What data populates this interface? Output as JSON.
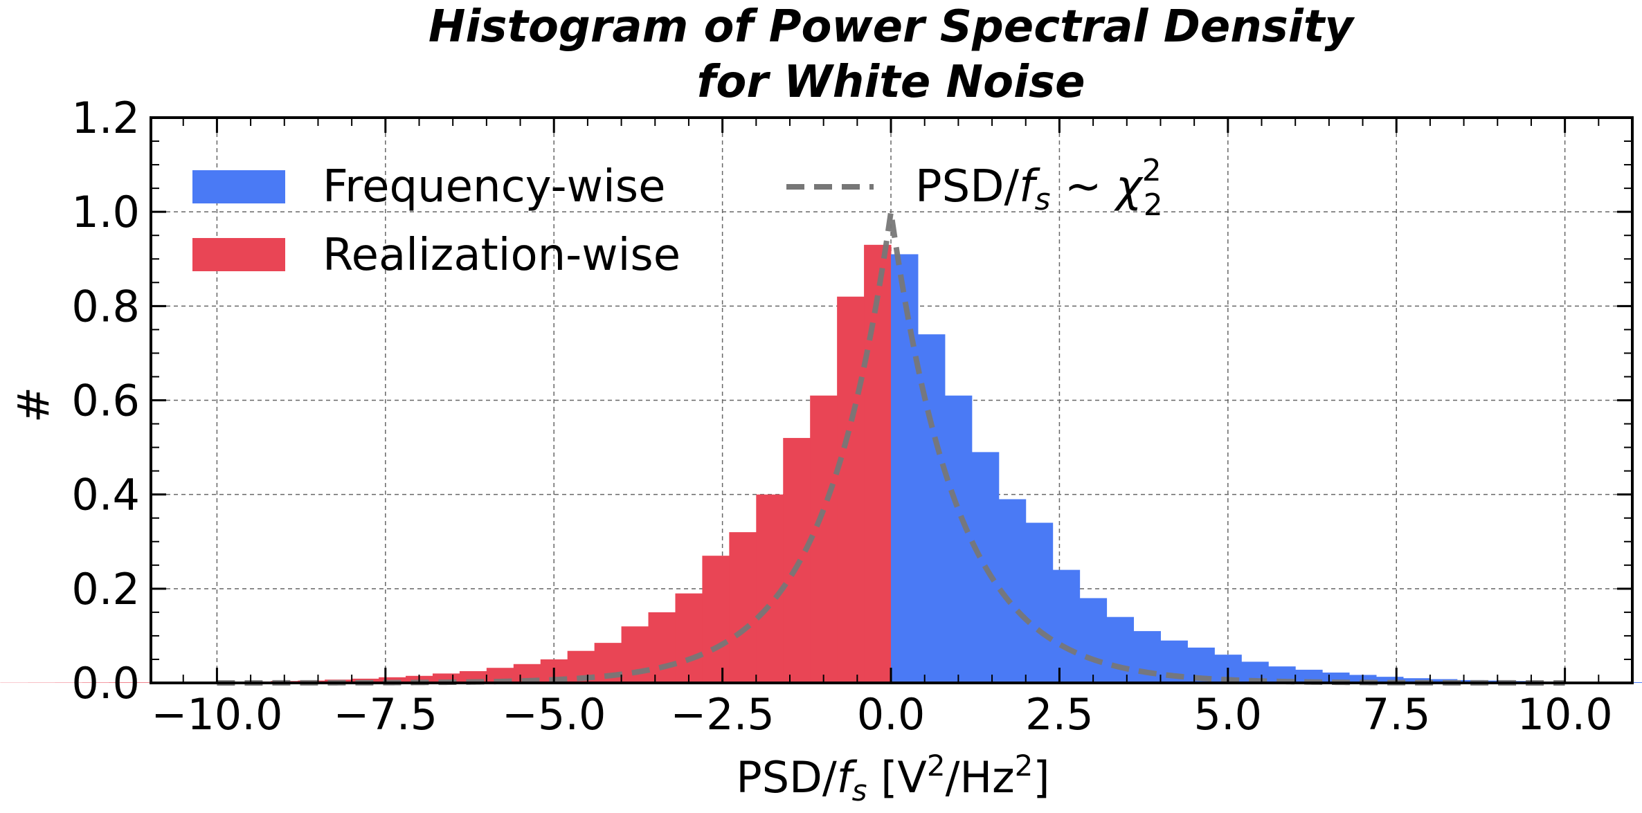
{
  "chart_data": {
    "type": "bar",
    "title_lines": [
      "Histogram of Power Spectral Density",
      "for White Noise"
    ],
    "xlabel": {
      "base": "PSD/",
      "var": "f",
      "sub": "s",
      "unit_open": " [V",
      "sup1": "2",
      "unit_mid": "/Hz",
      "sup2": "2",
      "unit_close": "]"
    },
    "ylabel": "#",
    "xlim": [
      -10.98,
      11.0
    ],
    "ylim": [
      0.0,
      1.2
    ],
    "xticks": [
      -10.0,
      -7.5,
      -5.0,
      -2.5,
      0.0,
      2.5,
      5.0,
      7.5,
      10.0
    ],
    "xtick_labels": [
      "−10.0",
      "−7.5",
      "−5.0",
      "−2.5",
      "0.0",
      "2.5",
      "5.0",
      "7.5",
      "10.0"
    ],
    "yticks": [
      0.0,
      0.2,
      0.4,
      0.6,
      0.8,
      1.0,
      1.2
    ],
    "ytick_labels": [
      "0.0",
      "0.2",
      "0.4",
      "0.6",
      "0.8",
      "1.0",
      "1.2"
    ],
    "grid": true,
    "legend": {
      "placement": "top-left",
      "entries": [
        {
          "label": "Frequency-wise",
          "kind": "patch",
          "color": "#4a7af5"
        },
        {
          "label": "Realization-wise",
          "kind": "patch",
          "color": "#e94555"
        },
        {
          "label_base": "PSD/",
          "label_var": "f",
          "label_sub": "s",
          "label_sim": " ~ ",
          "label_chi": "χ",
          "label_chi_sup": "2",
          "label_chi_sub": "2",
          "kind": "dashed-line",
          "color": "#777777"
        }
      ]
    },
    "bin_width": 0.4,
    "series": [
      {
        "name": "Frequency-wise",
        "color": "#4a7af5",
        "bin_edges_start": 0.0,
        "values": [
          0.91,
          0.74,
          0.61,
          0.49,
          0.39,
          0.34,
          0.24,
          0.18,
          0.14,
          0.11,
          0.09,
          0.075,
          0.06,
          0.045,
          0.035,
          0.028,
          0.022,
          0.017,
          0.013,
          0.01,
          0.008,
          0.006,
          0.005,
          0.004,
          0.003,
          0.0025,
          0.002,
          0.0015,
          0.001,
          0.001,
          0.0008,
          0.0006,
          0.0005,
          0.0004,
          0.0003,
          0.0003,
          0.0002,
          0.0002,
          0.0001,
          0.0001
        ]
      },
      {
        "name": "Realization-wise",
        "color": "#e94555",
        "bin_edges_end": 0.0,
        "values": [
          0.93,
          0.82,
          0.61,
          0.52,
          0.4,
          0.32,
          0.27,
          0.19,
          0.15,
          0.12,
          0.085,
          0.068,
          0.05,
          0.04,
          0.032,
          0.025,
          0.02,
          0.015,
          0.012,
          0.009,
          0.007,
          0.005,
          0.004,
          0.003,
          0.0025,
          0.002,
          0.0015,
          0.001,
          0.001,
          0.0008,
          0.0006,
          0.0005,
          0.0004,
          0.0003,
          0.0003,
          0.0002,
          0.0002,
          0.0001,
          0.0001,
          0.0001
        ]
      }
    ],
    "reference_curve": {
      "name": "PSD/f_s ~ chi2_2",
      "formula": "exp(-|x|)",
      "color": "#777777",
      "peak": 1.0,
      "x_range": [
        -10.0,
        10.0
      ]
    }
  }
}
